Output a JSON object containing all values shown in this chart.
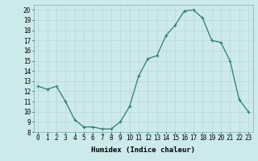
{
  "x": [
    0,
    1,
    2,
    3,
    4,
    5,
    6,
    7,
    8,
    9,
    10,
    11,
    12,
    13,
    14,
    15,
    16,
    17,
    18,
    19,
    20,
    21,
    22,
    23
  ],
  "y": [
    12.5,
    12.2,
    12.5,
    11.0,
    9.2,
    8.5,
    8.5,
    8.3,
    8.3,
    9.0,
    10.5,
    13.5,
    15.2,
    15.5,
    17.5,
    18.5,
    19.9,
    20.0,
    19.2,
    17.0,
    16.8,
    15.0,
    11.2,
    10.0
  ],
  "line_color": "#2e7d6e",
  "marker": "+",
  "marker_size": 3,
  "marker_lw": 0.8,
  "line_width": 0.9,
  "bg_color": "#cceaea",
  "grid_color": "#b8d8d8",
  "xlabel": "Humidex (Indice chaleur)",
  "ylabel_ticks": [
    8,
    9,
    10,
    11,
    12,
    13,
    14,
    15,
    16,
    17,
    18,
    19,
    20
  ],
  "xtick_labels": [
    "0",
    "1",
    "2",
    "3",
    "4",
    "5",
    "6",
    "7",
    "8",
    "9",
    "10",
    "11",
    "12",
    "13",
    "14",
    "15",
    "16",
    "17",
    "18",
    "19",
    "20",
    "21",
    "22",
    "23"
  ],
  "ylim": [
    8,
    20.5
  ],
  "xlim": [
    -0.5,
    23.5
  ],
  "tick_fontsize": 5.5,
  "xlabel_fontsize": 6.5
}
